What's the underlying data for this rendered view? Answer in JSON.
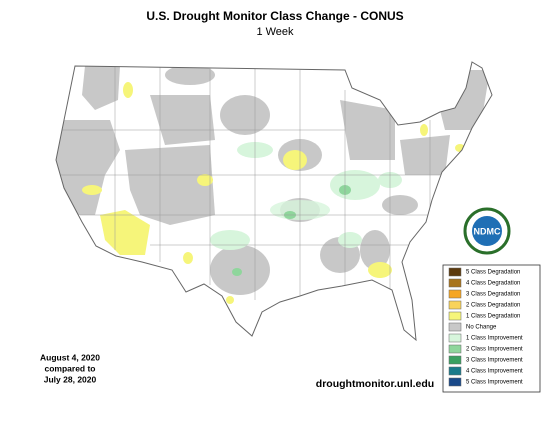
{
  "header": {
    "title": "U.S. Drought Monitor Class Change - CONUS",
    "subtitle": "1 Week"
  },
  "legend": {
    "items": [
      {
        "label": "5 Class Degradation",
        "color": "#5c3a0e"
      },
      {
        "label": "4 Class Degradation",
        "color": "#a8741c"
      },
      {
        "label": "3 Class Degradation",
        "color": "#f5a623"
      },
      {
        "label": "2 Class Degradation",
        "color": "#f8d35a"
      },
      {
        "label": "1 Class Degradation",
        "color": "#f6f57a"
      },
      {
        "label": "No Change",
        "color": "#c8c8c8"
      },
      {
        "label": "1 Class Improvement",
        "color": "#d7f5dc"
      },
      {
        "label": "2 Class Improvement",
        "color": "#8fd69c"
      },
      {
        "label": "3 Class Improvement",
        "color": "#3aa060"
      },
      {
        "label": "4 Class Improvement",
        "color": "#1a7a8a"
      },
      {
        "label": "5 Class Improvement",
        "color": "#1a4a8a"
      }
    ]
  },
  "dates": {
    "current": "August 4, 2020",
    "compare": "compared to",
    "previous": "July 28, 2020"
  },
  "url": "droughtmonitor.unl.edu",
  "logo": {
    "label": "NDMC"
  }
}
